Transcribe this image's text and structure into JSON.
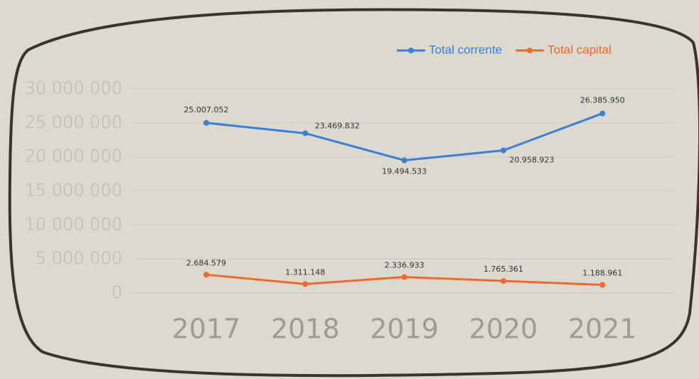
{
  "chart_data": {
    "type": "line",
    "categories": [
      "2017",
      "2018",
      "2019",
      "2020",
      "2021"
    ],
    "series": [
      {
        "name": "Total corrente",
        "color": "#3b7fd4",
        "values": [
          25007052,
          23469832,
          19494533,
          20958923,
          26385950
        ],
        "value_labels": [
          "25.007.052",
          "23.469.832",
          "19.494.533",
          "20.958.923",
          "26.385.950"
        ]
      },
      {
        "name": "Total capital",
        "color": "#f2692e",
        "values": [
          2684579,
          1311148,
          2336933,
          1765361,
          1188961
        ],
        "value_labels": [
          "2.684.579",
          "1.311.148",
          "2.336.933",
          "1.765.361",
          "1.188.961"
        ]
      }
    ],
    "ylim": [
      0,
      30000000
    ],
    "yticks": [
      0,
      {
        "value": 5000000,
        "label": "5.000.000"
      },
      {
        "value": 10000000,
        "label": "10.000.000"
      },
      {
        "value": 15000000,
        "label": "15.000.000"
      },
      {
        "value": 20000000,
        "label": "20.000.000"
      },
      {
        "value": 25000000,
        "label": "25.000.000"
      },
      {
        "value": 30000000,
        "label": "30.000.000"
      }
    ],
    "grid": true,
    "legend": "top-right"
  }
}
